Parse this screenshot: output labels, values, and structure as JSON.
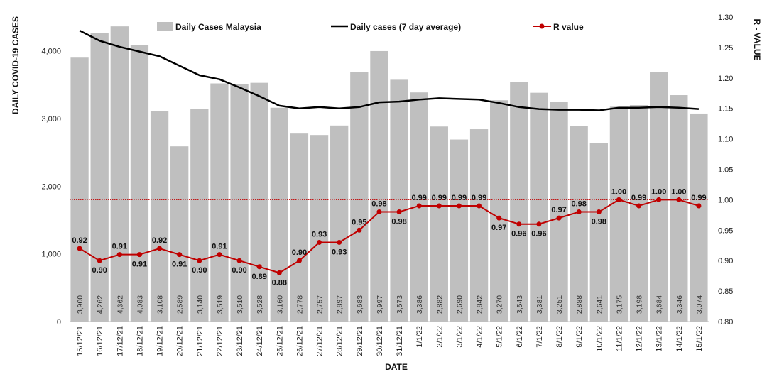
{
  "chart_data": {
    "type": "bar",
    "xlabel": "DATE",
    "ylabel": "DAILY COVID-19 CASES",
    "ylabel_right": "R - VALUE",
    "categories": [
      "15/12/21",
      "16/12/21",
      "17/12/21",
      "18/12/21",
      "19/12/21",
      "20/12/21",
      "21/12/21",
      "22/12/21",
      "23/12/21",
      "24/12/21",
      "25/12/21",
      "26/12/21",
      "27/12/21",
      "28/12/21",
      "29/12/21",
      "30/12/21",
      "31/12/21",
      "1/1/22",
      "2/1/22",
      "3/1/22",
      "4/1/22",
      "5/1/22",
      "6/1/22",
      "7/1/22",
      "8/1/22",
      "9/1/22",
      "10/1/22",
      "11/1/22",
      "12/1/22",
      "13/1/22",
      "14/1/22",
      "15/1/22"
    ],
    "series": [
      {
        "name": "Daily Cases Malaysia",
        "type": "bar",
        "axis": "left",
        "color": "#bfbfbf",
        "values": [
          3900,
          4262,
          4362,
          4083,
          3108,
          2589,
          3140,
          3519,
          3510,
          3528,
          3160,
          2778,
          2757,
          2897,
          3683,
          3997,
          3573,
          3386,
          2882,
          2690,
          2842,
          3270,
          3543,
          3381,
          3251,
          2888,
          2641,
          3175,
          3198,
          3684,
          3346,
          3074
        ],
        "labels": [
          "3,900",
          "4,262",
          "4,362",
          "4,083",
          "3,108",
          "2,589",
          "3,140",
          "3,519",
          "3,510",
          "3,528",
          "3,160",
          "2,778",
          "2,757",
          "2,897",
          "3,683",
          "3,997",
          "3,573",
          "3,386",
          "2,882",
          "2,690",
          "2,842",
          "3,270",
          "3,543",
          "3,381",
          "3,251",
          "2,888",
          "2,641",
          "3,175",
          "3,198",
          "3,684",
          "3,346",
          "3,074"
        ]
      },
      {
        "name": "Daily cases (7 day average)",
        "type": "line",
        "axis": "left",
        "color": "#000000",
        "values": [
          4300,
          4150,
          4060,
          3990,
          3920,
          3780,
          3640,
          3580,
          3460,
          3330,
          3190,
          3150,
          3170,
          3150,
          3170,
          3240,
          3250,
          3280,
          3300,
          3290,
          3280,
          3230,
          3170,
          3140,
          3130,
          3130,
          3120,
          3160,
          3160,
          3170,
          3160,
          3140
        ]
      },
      {
        "name": "R value",
        "type": "line",
        "axis": "right",
        "color": "#c00000",
        "values": [
          0.92,
          0.9,
          0.91,
          0.91,
          0.92,
          0.91,
          0.9,
          0.91,
          0.9,
          0.89,
          0.88,
          0.9,
          0.93,
          0.93,
          0.95,
          0.98,
          0.98,
          0.99,
          0.99,
          0.99,
          0.99,
          0.97,
          0.96,
          0.96,
          0.97,
          0.98,
          0.98,
          1.0,
          0.99,
          1.0,
          1.0,
          0.99
        ],
        "labels": [
          "0.92",
          "0.90",
          "0.91",
          "0.91",
          "0.92",
          "0.91",
          "0.90",
          "0.91",
          "0.90",
          "0.89",
          "0.88",
          "0.90",
          "0.93",
          "0.93",
          "0.95",
          "0.98",
          "0.98",
          "0.99",
          "0.99",
          "0.99",
          "0.99",
          "0.97",
          "0.96",
          "0.96",
          "0.97",
          "0.98",
          "0.98",
          "1.00",
          "0.99",
          "1.00",
          "1.00",
          "0.99"
        ]
      }
    ],
    "reference_line": {
      "axis": "right",
      "value": 1.0,
      "color": "#c00000",
      "style": "dotted"
    },
    "ylim": [
      0,
      4500
    ],
    "yticks": [
      0,
      1000,
      2000,
      3000,
      4000
    ],
    "ytick_labels": [
      "0",
      "1,000",
      "2,000",
      "3,000",
      "4,000"
    ],
    "ylim_right": [
      0.8,
      1.3
    ],
    "yticks_right": [
      0.8,
      0.85,
      0.9,
      0.95,
      1.0,
      1.05,
      1.1,
      1.15,
      1.2,
      1.25,
      1.3
    ],
    "ytick_labels_right": [
      "0.80",
      "0.85",
      "0.90",
      "0.95",
      "1.00",
      "1.05",
      "1.10",
      "1.15",
      "1.20",
      "1.25",
      "1.30"
    ],
    "grid": false,
    "legend": "top"
  }
}
